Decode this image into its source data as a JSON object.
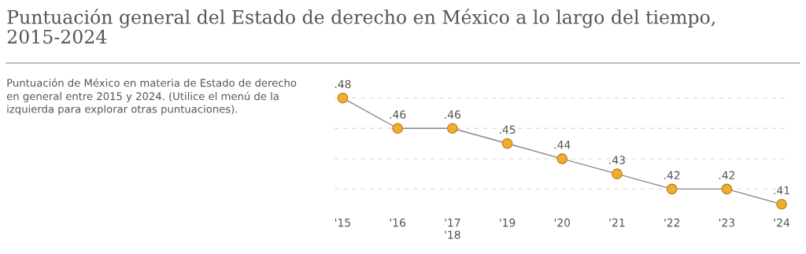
{
  "chart_data": {
    "type": "line",
    "title": "Puntuación general del Estado de derecho en México a lo largo del tiempo, 2015-2024",
    "subtitle": "Puntuación de México en materia de Estado de derecho en general entre 2015 y 2024. (Utilice el menú de la izquierda para explorar otras puntuaciones).",
    "categories": [
      "'15",
      "'16",
      "'17\n'18",
      "'19",
      "'20",
      "'21",
      "'22",
      "'23",
      "'24"
    ],
    "series": [
      {
        "color": "#f2ac2e",
        "values": [
          0.48,
          0.46,
          0.46,
          0.45,
          0.44,
          0.43,
          0.42,
          0.42,
          0.41
        ],
        "value_labels": [
          ".48",
          ".46",
          ".46",
          ".45",
          ".44",
          ".43",
          ".42",
          ".42",
          ".41"
        ]
      }
    ],
    "marker": "circle",
    "line_style": "solid",
    "grid": "y",
    "tick_labels": "x"
  }
}
